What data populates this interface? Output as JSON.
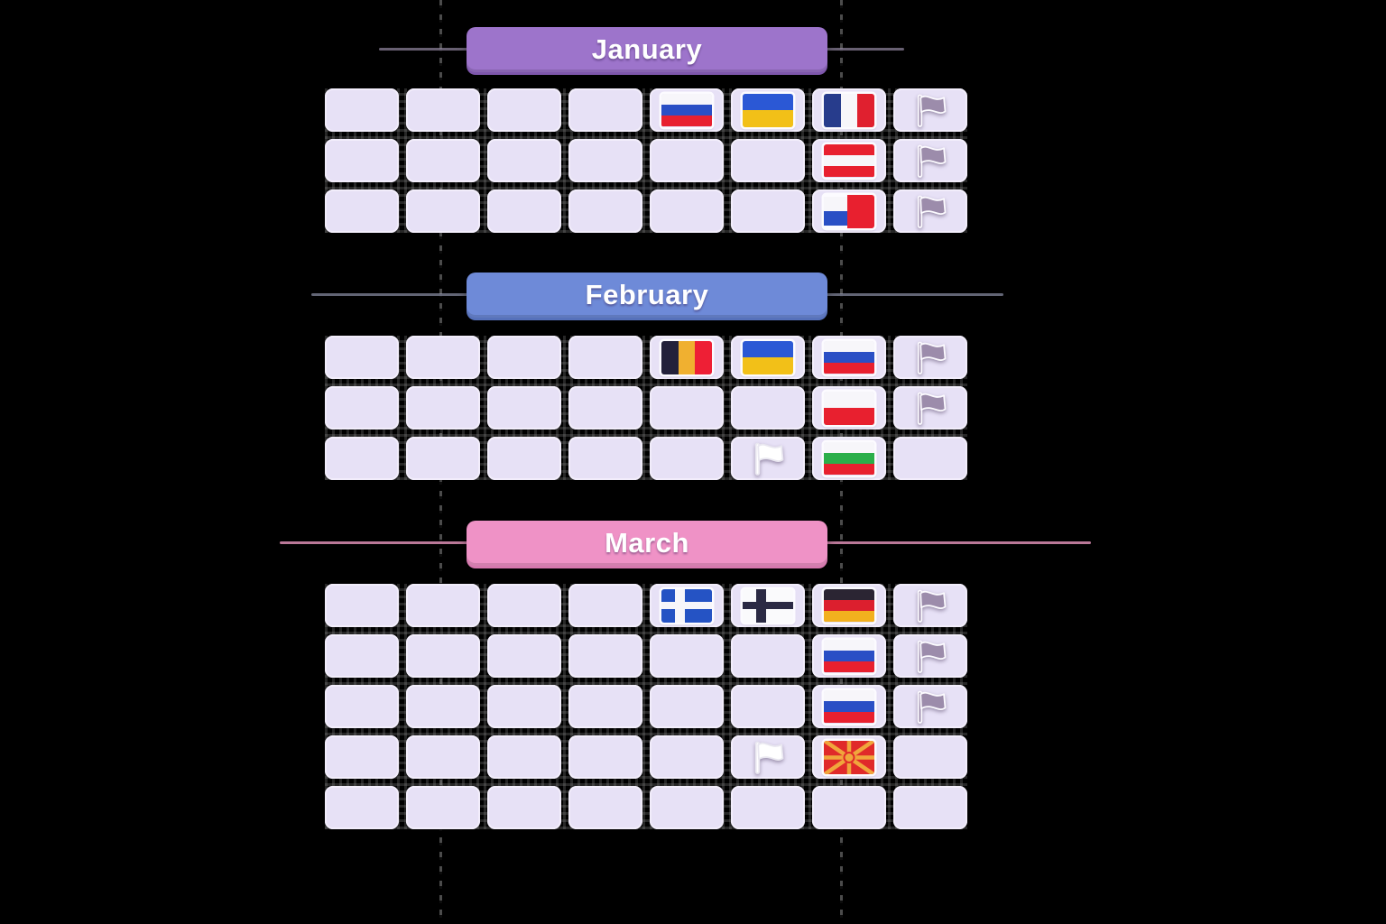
{
  "months": [
    {
      "label": "January",
      "header_color": "#9d74cb",
      "header_shadow": "#7e57ac",
      "line_color": "rgba(160,148,175,0.65)",
      "rows": 3,
      "cols": 8,
      "cells": [
        {
          "row": 0,
          "col": 4,
          "flag": "russia"
        },
        {
          "row": 0,
          "col": 5,
          "flag": "ukraine"
        },
        {
          "row": 0,
          "col": 6,
          "flag": "france"
        },
        {
          "row": 0,
          "col": 7,
          "flag": "placeholder_flag"
        },
        {
          "row": 1,
          "col": 6,
          "flag": "austria"
        },
        {
          "row": 1,
          "col": 7,
          "flag": "placeholder_flag"
        },
        {
          "row": 2,
          "col": 6,
          "flag": "czechia"
        },
        {
          "row": 2,
          "col": 7,
          "flag": "placeholder_flag"
        }
      ]
    },
    {
      "label": "February",
      "header_color": "#6e8ad8",
      "header_shadow": "#5671bb",
      "line_color": "rgba(150,155,180,0.65)",
      "rows": 3,
      "cols": 8,
      "cells": [
        {
          "row": 0,
          "col": 4,
          "flag": "belgium"
        },
        {
          "row": 0,
          "col": 5,
          "flag": "ukraine"
        },
        {
          "row": 0,
          "col": 6,
          "flag": "russia"
        },
        {
          "row": 0,
          "col": 7,
          "flag": "placeholder_flag"
        },
        {
          "row": 1,
          "col": 6,
          "flag": "poland"
        },
        {
          "row": 1,
          "col": 7,
          "flag": "placeholder_flag"
        },
        {
          "row": 2,
          "col": 5,
          "flag": "white_flag"
        },
        {
          "row": 2,
          "col": 6,
          "flag": "bulgaria"
        }
      ]
    },
    {
      "label": "March",
      "header_color": "#ef92c6",
      "header_shadow": "#d678ae",
      "line_color": "rgba(232,150,190,0.8)",
      "rows": 5,
      "cols": 8,
      "cells": [
        {
          "row": 0,
          "col": 4,
          "flag": "greece"
        },
        {
          "row": 0,
          "col": 5,
          "flag": "finland"
        },
        {
          "row": 0,
          "col": 6,
          "flag": "germany"
        },
        {
          "row": 0,
          "col": 7,
          "flag": "placeholder_flag"
        },
        {
          "row": 1,
          "col": 6,
          "flag": "russia"
        },
        {
          "row": 1,
          "col": 7,
          "flag": "placeholder_flag"
        },
        {
          "row": 2,
          "col": 6,
          "flag": "russia"
        },
        {
          "row": 2,
          "col": 7,
          "flag": "placeholder_flag"
        },
        {
          "row": 3,
          "col": 5,
          "flag": "white_flag"
        },
        {
          "row": 3,
          "col": 6,
          "flag": "north_macedonia"
        }
      ]
    }
  ],
  "flags": {
    "russia": {
      "type": "h",
      "stripes": [
        "#f7f6fa",
        "#2a4fc5",
        "#e8202f"
      ]
    },
    "ukraine": {
      "type": "h",
      "stripes": [
        "#2b58d5",
        "#f2c018"
      ]
    },
    "france": {
      "type": "v",
      "stripes": [
        "#273c8c",
        "#f7f6fa",
        "#e0202f"
      ]
    },
    "austria": {
      "type": "h",
      "stripes": [
        "#e8202f",
        "#f7f6fa",
        "#e8202f"
      ]
    },
    "czechia": {
      "type": "quad",
      "base": "#fcfbff",
      "tl": "#f7f6fa",
      "bl": "#2a4fc5",
      "right": "#e8202f"
    },
    "belgium": {
      "type": "v",
      "stripes": [
        "#23213a",
        "#f0b030",
        "#ee1f35"
      ]
    },
    "poland": {
      "type": "h",
      "stripes": [
        "#f7f6fa",
        "#e8202f"
      ]
    },
    "bulgaria": {
      "type": "h",
      "stripes": [
        "#f7f6fa",
        "#2bae4a",
        "#e8202f"
      ]
    },
    "greece": {
      "type": "nordic",
      "bg": "#2553c4",
      "cross": "#f7f6fa"
    },
    "finland": {
      "type": "nordic",
      "bg": "#fafafc",
      "cross": "#2b2a44"
    },
    "germany": {
      "type": "h",
      "stripes": [
        "#2b2533",
        "#dc1f2e",
        "#f2b01e"
      ]
    },
    "north_macedonia": {
      "type": "rays",
      "bg": "#e02a2a",
      "ray": "#f0a63c"
    },
    "white_flag": {
      "type": "glyph",
      "color": "#ffffff",
      "stroke": "#e9e7f0"
    },
    "placeholder_flag": {
      "type": "glyph",
      "color": "#9c8cab",
      "stroke": "#fcfbff"
    }
  }
}
